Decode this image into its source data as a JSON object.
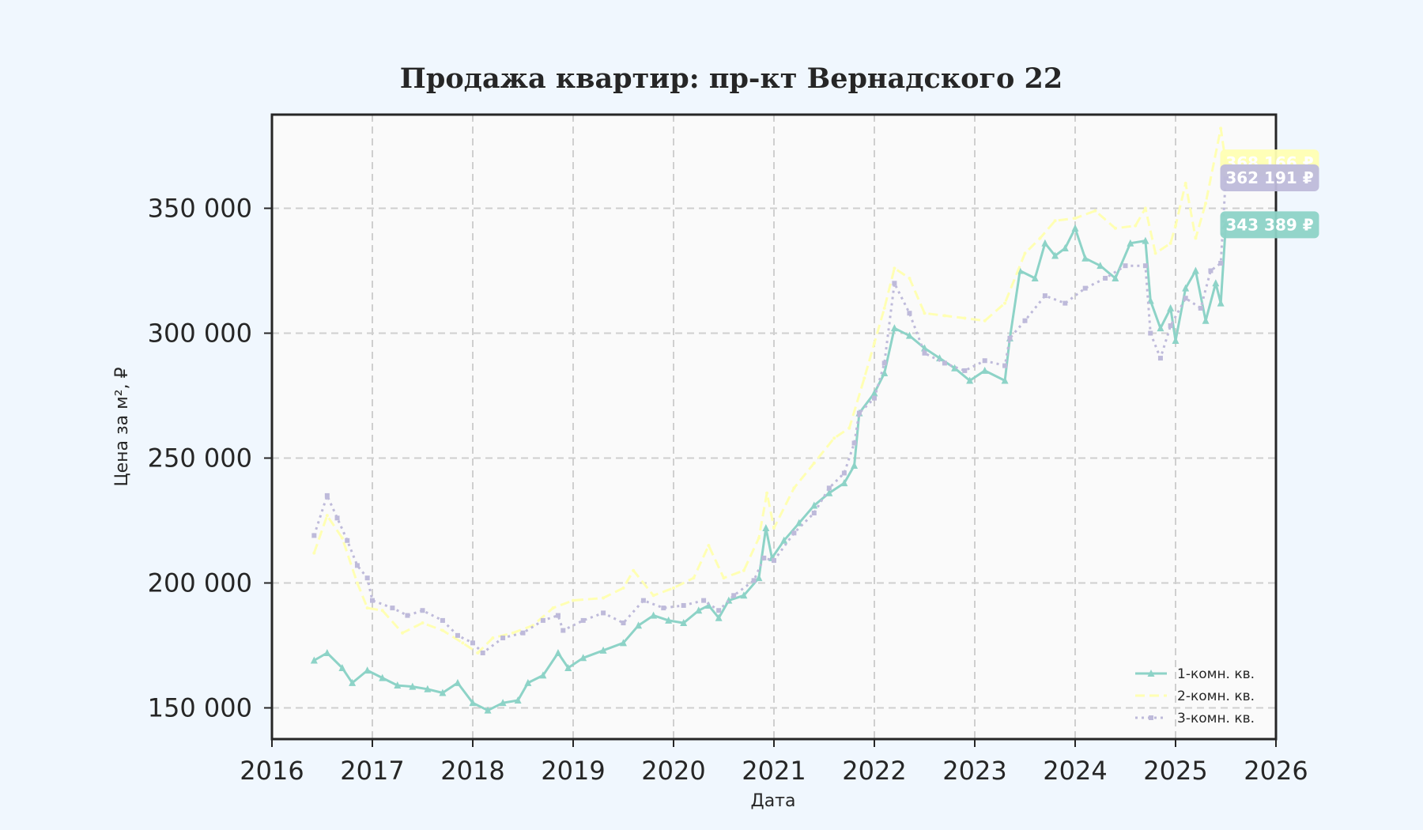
{
  "chart_data": {
    "type": "line",
    "title": "Продажа квартир: пр-кт Вернадского 22",
    "xlabel": "Дата",
    "ylabel": "Цена за м², ₽",
    "xlim": [
      2016,
      2026
    ],
    "ylim": [
      137500,
      387500
    ],
    "x_ticks": [
      "2016",
      "2017",
      "2018",
      "2019",
      "2020",
      "2021",
      "2022",
      "2023",
      "2024",
      "2025",
      "2026"
    ],
    "y_ticks": [
      {
        "value": 150000,
        "label": "150 000"
      },
      {
        "value": 200000,
        "label": "200 000"
      },
      {
        "value": 250000,
        "label": "250 000"
      },
      {
        "value": 300000,
        "label": "300 000"
      },
      {
        "value": 350000,
        "label": "350 000"
      }
    ],
    "grid": true,
    "legend_position": "bottom-right",
    "series": [
      {
        "name": "1-комн. кв.",
        "color": "#8dd3c7",
        "style": "solid-triangle",
        "end_label": "343 389 ₽",
        "end_value": 343389,
        "points": [
          [
            2016.42,
            169000
          ],
          [
            2016.55,
            172000
          ],
          [
            2016.7,
            166000
          ],
          [
            2016.8,
            160000
          ],
          [
            2016.95,
            165000
          ],
          [
            2017.1,
            162000
          ],
          [
            2017.25,
            159000
          ],
          [
            2017.4,
            158500
          ],
          [
            2017.55,
            157500
          ],
          [
            2017.7,
            156000
          ],
          [
            2017.85,
            160000
          ],
          [
            2018.0,
            152000
          ],
          [
            2018.15,
            149000
          ],
          [
            2018.3,
            152000
          ],
          [
            2018.45,
            153000
          ],
          [
            2018.55,
            160000
          ],
          [
            2018.7,
            163000
          ],
          [
            2018.85,
            172000
          ],
          [
            2018.95,
            166000
          ],
          [
            2019.1,
            170000
          ],
          [
            2019.3,
            173000
          ],
          [
            2019.5,
            176000
          ],
          [
            2019.65,
            183000
          ],
          [
            2019.8,
            187000
          ],
          [
            2019.95,
            185000
          ],
          [
            2020.1,
            184000
          ],
          [
            2020.25,
            189000
          ],
          [
            2020.35,
            191000
          ],
          [
            2020.45,
            186000
          ],
          [
            2020.55,
            193000
          ],
          [
            2020.7,
            195000
          ],
          [
            2020.85,
            202000
          ],
          [
            2020.92,
            222000
          ],
          [
            2020.98,
            210000
          ],
          [
            2021.1,
            217000
          ],
          [
            2021.25,
            224000
          ],
          [
            2021.4,
            231000
          ],
          [
            2021.55,
            236000
          ],
          [
            2021.7,
            240000
          ],
          [
            2021.8,
            247000
          ],
          [
            2021.85,
            268000
          ],
          [
            2022.0,
            276000
          ],
          [
            2022.1,
            284000
          ],
          [
            2022.2,
            302000
          ],
          [
            2022.35,
            299000
          ],
          [
            2022.5,
            294000
          ],
          [
            2022.65,
            290000
          ],
          [
            2022.8,
            286000
          ],
          [
            2022.95,
            281000
          ],
          [
            2023.1,
            285000
          ],
          [
            2023.3,
            281000
          ],
          [
            2023.35,
            298000
          ],
          [
            2023.45,
            325000
          ],
          [
            2023.6,
            322000
          ],
          [
            2023.7,
            336000
          ],
          [
            2023.8,
            331000
          ],
          [
            2023.9,
            334000
          ],
          [
            2024.0,
            342000
          ],
          [
            2024.1,
            330000
          ],
          [
            2024.25,
            327000
          ],
          [
            2024.4,
            322000
          ],
          [
            2024.55,
            336000
          ],
          [
            2024.7,
            337000
          ],
          [
            2024.75,
            313000
          ],
          [
            2024.85,
            302000
          ],
          [
            2024.95,
            310000
          ],
          [
            2025.0,
            297000
          ],
          [
            2025.1,
            318000
          ],
          [
            2025.2,
            325000
          ],
          [
            2025.3,
            305000
          ],
          [
            2025.4,
            320000
          ],
          [
            2025.45,
            312000
          ],
          [
            2025.5,
            343389
          ]
        ]
      },
      {
        "name": "2-комн. кв.",
        "color": "#ffffb3",
        "style": "dashed",
        "end_label": "368 166 ₽",
        "end_value": 368166,
        "points": [
          [
            2016.42,
            212000
          ],
          [
            2016.55,
            227000
          ],
          [
            2016.7,
            218000
          ],
          [
            2016.85,
            200000
          ],
          [
            2016.95,
            190000
          ],
          [
            2017.1,
            189000
          ],
          [
            2017.3,
            180000
          ],
          [
            2017.5,
            184000
          ],
          [
            2017.7,
            181000
          ],
          [
            2017.9,
            176000
          ],
          [
            2018.05,
            172000
          ],
          [
            2018.2,
            178000
          ],
          [
            2018.4,
            180000
          ],
          [
            2018.6,
            183000
          ],
          [
            2018.8,
            190000
          ],
          [
            2019.0,
            193000
          ],
          [
            2019.3,
            194000
          ],
          [
            2019.5,
            198000
          ],
          [
            2019.6,
            205000
          ],
          [
            2019.8,
            195000
          ],
          [
            2020.0,
            198000
          ],
          [
            2020.2,
            202000
          ],
          [
            2020.35,
            215000
          ],
          [
            2020.5,
            202000
          ],
          [
            2020.7,
            205000
          ],
          [
            2020.85,
            218000
          ],
          [
            2020.93,
            236000
          ],
          [
            2021.0,
            222000
          ],
          [
            2021.2,
            238000
          ],
          [
            2021.4,
            248000
          ],
          [
            2021.6,
            258000
          ],
          [
            2021.75,
            262000
          ],
          [
            2021.9,
            282000
          ],
          [
            2022.0,
            296000
          ],
          [
            2022.1,
            310000
          ],
          [
            2022.2,
            326000
          ],
          [
            2022.35,
            322000
          ],
          [
            2022.5,
            308000
          ],
          [
            2022.7,
            307000
          ],
          [
            2022.9,
            306000
          ],
          [
            2023.1,
            305000
          ],
          [
            2023.3,
            312000
          ],
          [
            2023.5,
            332000
          ],
          [
            2023.65,
            338000
          ],
          [
            2023.8,
            345000
          ],
          [
            2024.0,
            346000
          ],
          [
            2024.2,
            349000
          ],
          [
            2024.4,
            342000
          ],
          [
            2024.6,
            343000
          ],
          [
            2024.7,
            350000
          ],
          [
            2024.8,
            332000
          ],
          [
            2024.95,
            336000
          ],
          [
            2025.0,
            343000
          ],
          [
            2025.1,
            360000
          ],
          [
            2025.2,
            338000
          ],
          [
            2025.3,
            352000
          ],
          [
            2025.45,
            382000
          ],
          [
            2025.5,
            368166
          ]
        ]
      },
      {
        "name": "3-комн. кв.",
        "color": "#bebada",
        "style": "dotted-square",
        "end_label": "362 191 ₽",
        "end_value": 362191,
        "points": [
          [
            2016.42,
            219000
          ],
          [
            2016.55,
            235000
          ],
          [
            2016.65,
            226000
          ],
          [
            2016.75,
            217000
          ],
          [
            2016.85,
            207000
          ],
          [
            2016.95,
            202000
          ],
          [
            2017.0,
            193000
          ],
          [
            2017.2,
            190000
          ],
          [
            2017.35,
            187000
          ],
          [
            2017.5,
            189000
          ],
          [
            2017.7,
            185000
          ],
          [
            2017.85,
            179000
          ],
          [
            2018.0,
            176000
          ],
          [
            2018.1,
            172000
          ],
          [
            2018.3,
            178000
          ],
          [
            2018.5,
            180000
          ],
          [
            2018.7,
            185000
          ],
          [
            2018.85,
            187000
          ],
          [
            2018.9,
            181000
          ],
          [
            2019.1,
            185000
          ],
          [
            2019.3,
            188000
          ],
          [
            2019.5,
            184000
          ],
          [
            2019.7,
            193000
          ],
          [
            2019.9,
            190000
          ],
          [
            2020.1,
            191000
          ],
          [
            2020.3,
            193000
          ],
          [
            2020.45,
            189000
          ],
          [
            2020.6,
            195000
          ],
          [
            2020.8,
            201000
          ],
          [
            2020.9,
            210000
          ],
          [
            2021.0,
            209000
          ],
          [
            2021.2,
            220000
          ],
          [
            2021.4,
            228000
          ],
          [
            2021.55,
            238000
          ],
          [
            2021.7,
            244000
          ],
          [
            2021.8,
            256000
          ],
          [
            2021.85,
            268000
          ],
          [
            2022.0,
            274000
          ],
          [
            2022.1,
            288000
          ],
          [
            2022.2,
            320000
          ],
          [
            2022.35,
            308000
          ],
          [
            2022.5,
            292000
          ],
          [
            2022.7,
            288000
          ],
          [
            2022.9,
            285000
          ],
          [
            2023.1,
            289000
          ],
          [
            2023.3,
            287000
          ],
          [
            2023.35,
            298000
          ],
          [
            2023.5,
            305000
          ],
          [
            2023.7,
            315000
          ],
          [
            2023.9,
            312000
          ],
          [
            2024.1,
            318000
          ],
          [
            2024.3,
            322000
          ],
          [
            2024.5,
            327000
          ],
          [
            2024.7,
            327000
          ],
          [
            2024.75,
            300000
          ],
          [
            2024.85,
            290000
          ],
          [
            2024.95,
            303000
          ],
          [
            2025.1,
            314000
          ],
          [
            2025.25,
            310000
          ],
          [
            2025.35,
            325000
          ],
          [
            2025.45,
            328000
          ],
          [
            2025.5,
            362191
          ]
        ]
      }
    ]
  }
}
